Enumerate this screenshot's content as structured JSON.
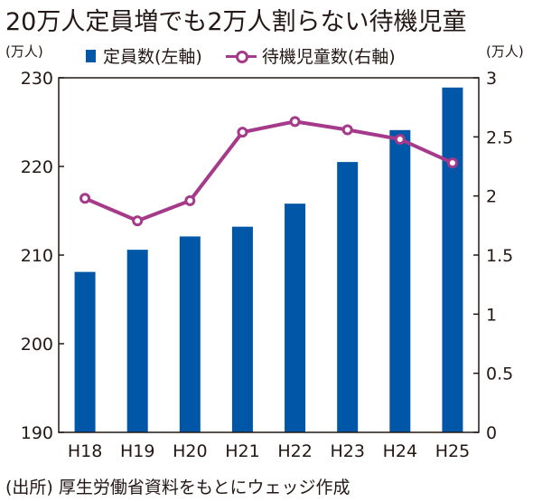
{
  "title": "20万人定員増でも2万人割らない待機児童",
  "source": "(出所) 厚生労働省資料をもとにウェッジ作成",
  "chart_data": {
    "type": "bar",
    "categories": [
      "H18",
      "H19",
      "H20",
      "H21",
      "H22",
      "H23",
      "H24",
      "H25"
    ],
    "series": [
      {
        "name": "定員数(左軸)",
        "type": "bar",
        "axis": "left",
        "color": "#0057a8",
        "values": [
          208.1,
          210.6,
          212.1,
          213.2,
          215.8,
          220.5,
          224.1,
          228.9
        ]
      },
      {
        "name": "待機児童数(右軸)",
        "type": "line",
        "axis": "right",
        "color": "#a63a8a",
        "values": [
          1.98,
          1.79,
          1.96,
          2.54,
          2.63,
          2.56,
          2.48,
          2.28
        ]
      }
    ],
    "left_axis": {
      "unit": "(万人)",
      "ylim": [
        190,
        230
      ],
      "ticks": [
        "190",
        "200",
        "210",
        "220",
        "230"
      ]
    },
    "right_axis": {
      "unit": "(万人)",
      "ylim": [
        0,
        3
      ],
      "ticks": [
        "0",
        "0.5",
        "1",
        "1.5",
        "2",
        "2.5",
        "3"
      ]
    },
    "grid": false,
    "legend_position": "top"
  }
}
